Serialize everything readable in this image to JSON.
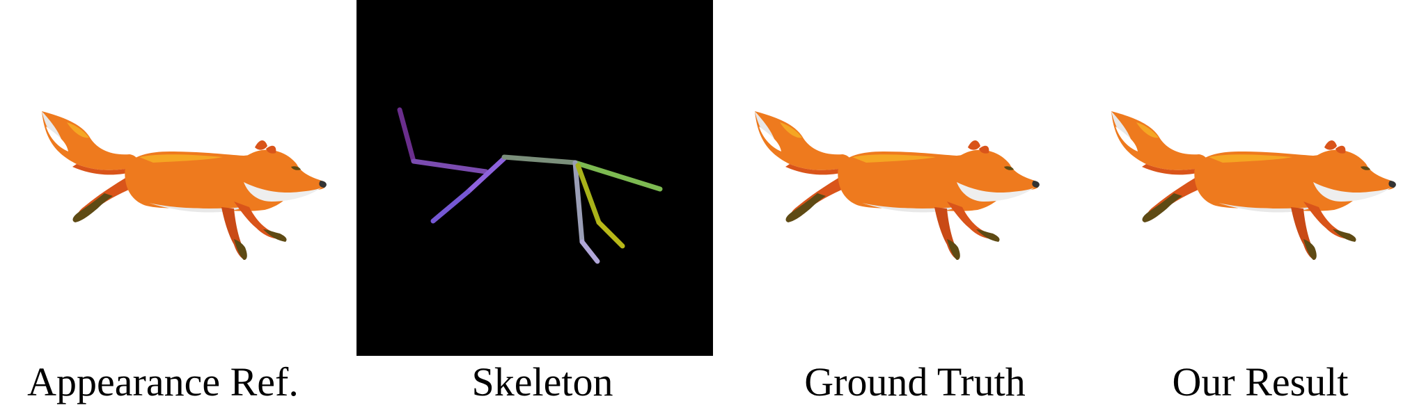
{
  "panels": [
    {
      "caption": "Appearance Ref."
    },
    {
      "caption": "Skeleton"
    },
    {
      "caption": "Ground Truth"
    },
    {
      "caption": "Our Result"
    }
  ],
  "colors": {
    "fur_orange": "#ee7a1e",
    "fur_dark_orange": "#d9541a",
    "fur_light": "#f5a623",
    "belly_white": "#eeeeee",
    "paw_brown": "#5e4a14",
    "skeleton_background": "#000000"
  }
}
